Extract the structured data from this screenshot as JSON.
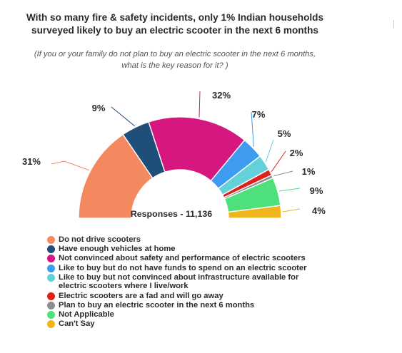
{
  "title": "With so many fire & safety incidents, only 1% Indian households surveyed likely to buy an electric scooter in the next 6 months",
  "subtitle": "(If you or your family do not plan to buy an electric scooter in the next 6 months, what is the key reason for it? )",
  "chart_data": {
    "type": "pie",
    "style": "half-donut",
    "center_label": "Responses - 11,136",
    "legend_position": "bottom-left",
    "slices": [
      {
        "label": "Do not drive scooters",
        "value": 31,
        "value_label": "31%",
        "color": "#F4895F"
      },
      {
        "label": "Have enough vehicles at home",
        "value": 9,
        "value_label": "9%",
        "color": "#1F4E79"
      },
      {
        "label": "Not convinced about safety and performance of electric scooters",
        "value": 32,
        "value_label": "32%",
        "color": "#D6177F"
      },
      {
        "label": "Like to buy but do not have funds to spend on an electric scooter",
        "value": 7,
        "value_label": "7%",
        "color": "#3D9BF0"
      },
      {
        "label": "Like to buy but not convinced about infrastructure available for electric scooters where I live/work",
        "value": 5,
        "value_label": "5%",
        "color": "#64D0D8"
      },
      {
        "label": "Electric scooters are a fad and will go away",
        "value": 2,
        "value_label": "2%",
        "color": "#E0201B"
      },
      {
        "label": "Plan to buy an electric scooter in the next 6 months",
        "value": 1,
        "value_label": "1%",
        "color": "#8E8E8E"
      },
      {
        "label": "Not Applicable",
        "value": 9,
        "value_label": "9%",
        "color": "#4EE07A"
      },
      {
        "label": "Can't Say",
        "value": 4,
        "value_label": "4%",
        "color": "#F0B41C"
      }
    ]
  }
}
